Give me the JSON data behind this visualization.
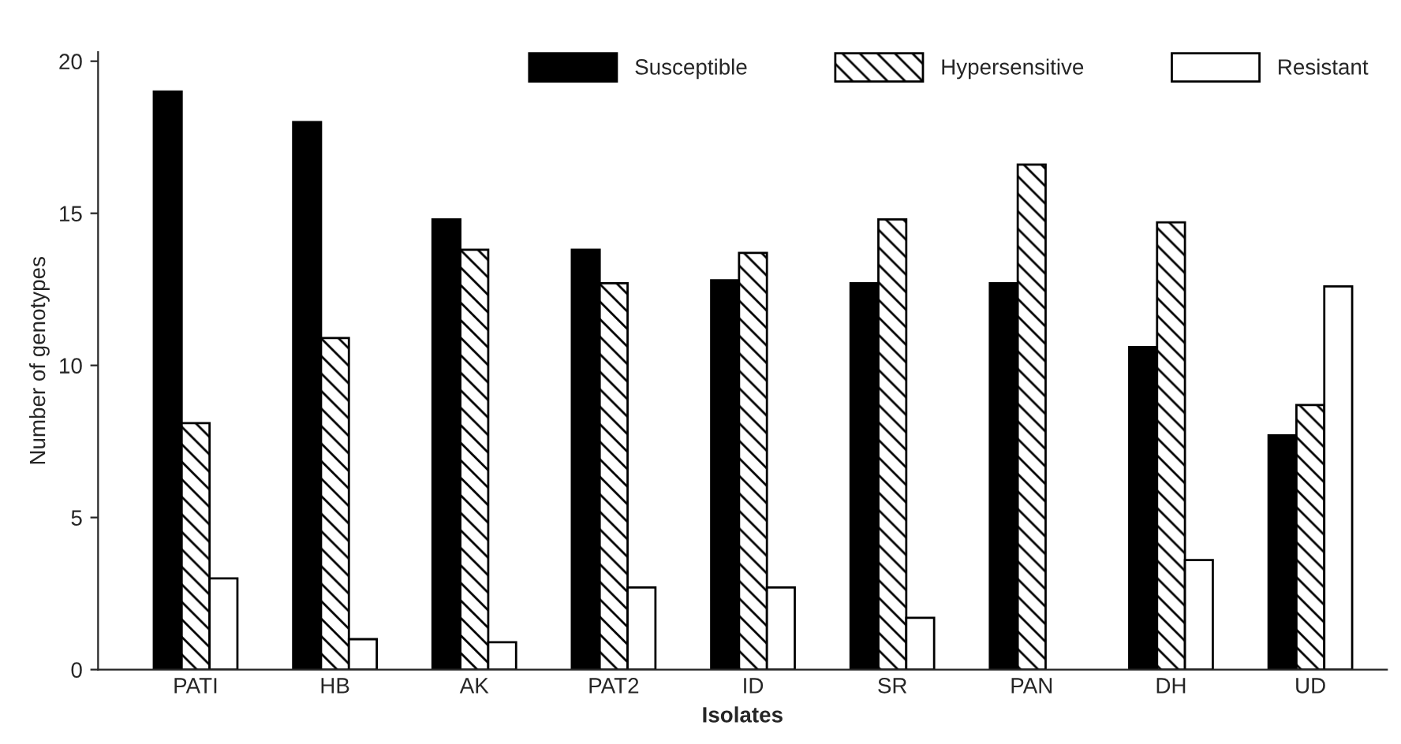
{
  "chart_data": {
    "type": "bar",
    "xlabel": "Isolates",
    "ylabel": "Number of genotypes",
    "categories": [
      "PATI",
      "HB",
      "AK",
      "PAT2",
      "ID",
      "SR",
      "PAN",
      "DH",
      "UD"
    ],
    "series": [
      {
        "name": "Susceptible",
        "color": "#000000",
        "values": [
          19.0,
          18.0,
          14.8,
          13.8,
          12.8,
          12.7,
          12.7,
          10.6,
          7.7
        ]
      },
      {
        "name": "Hypersensitive",
        "color": "#000000",
        "values": [
          8.1,
          10.9,
          13.8,
          12.7,
          13.7,
          14.8,
          16.6,
          14.7,
          8.7
        ]
      },
      {
        "name": "Resistant",
        "color": "#ffffff",
        "values": [
          3.0,
          1.0,
          0.9,
          2.7,
          2.7,
          1.7,
          null,
          3.6,
          12.6
        ]
      }
    ],
    "ylim": [
      0,
      20.3
    ],
    "yticks": [
      0,
      5,
      10,
      15,
      20
    ],
    "grid": false,
    "legend": "top"
  }
}
